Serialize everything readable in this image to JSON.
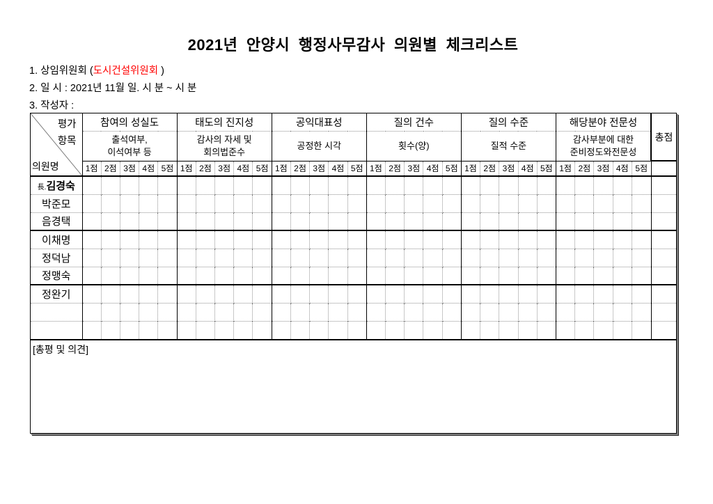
{
  "title": "2021년 안양시 행정사무감사 의원별 체크리스트",
  "colors": {
    "committee_text": "#ff0000"
  },
  "meta": {
    "committee_line": {
      "prefix": "1. 상임위원회 (",
      "committee": "도시건설위원회",
      "suffix": " )"
    },
    "datetime_line": "2. 일 시 : 2021년 11월 일. 시 분 ~ 시 분",
    "author_line": "3. 작성자 :"
  },
  "table": {
    "corner": {
      "top": "평가",
      "middle": "항목",
      "bottom": "의원명"
    },
    "score_labels": [
      "1점",
      "2점",
      "3점",
      "4점",
      "5점"
    ],
    "groups": [
      {
        "title": "참여의 성실도",
        "subtitle": "출석여부,\n이석여부 등"
      },
      {
        "title": "태도의 진지성",
        "subtitle": "감사의 자세 및\n회의법준수"
      },
      {
        "title": "공익대표성",
        "subtitle": "공정한 시각"
      },
      {
        "title": "질의 건수",
        "subtitle": "횟수(양)"
      },
      {
        "title": "질의 수준",
        "subtitle": "질적 수준"
      },
      {
        "title": "해당분야 전문성",
        "subtitle": "감사부분에 대한\n준비정도와전문성"
      }
    ],
    "total_label": "총점",
    "members": [
      {
        "prefix": "長.",
        "name": "김경숙",
        "bold": true
      },
      {
        "prefix": "",
        "name": "박준모",
        "bold": false
      },
      {
        "prefix": "",
        "name": "음경택",
        "bold": false
      },
      {
        "prefix": "",
        "name": "이채명",
        "bold": false
      },
      {
        "prefix": "",
        "name": "정덕남",
        "bold": false
      },
      {
        "prefix": "",
        "name": "정맹숙",
        "bold": false
      },
      {
        "prefix": "",
        "name": "정완기",
        "bold": false
      },
      {
        "prefix": "",
        "name": "",
        "bold": false
      },
      {
        "prefix": "",
        "name": "",
        "bold": false
      }
    ]
  },
  "summary": {
    "label": "[총평 및 의견]"
  }
}
